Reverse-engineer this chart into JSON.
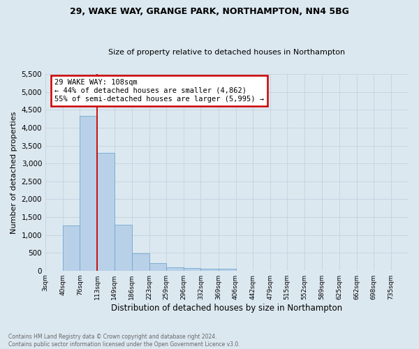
{
  "title1": "29, WAKE WAY, GRANGE PARK, NORTHAMPTON, NN4 5BG",
  "title2": "Size of property relative to detached houses in Northampton",
  "xlabel": "Distribution of detached houses by size in Northampton",
  "ylabel": "Number of detached properties",
  "footnote": "Contains HM Land Registry data © Crown copyright and database right 2024.\nContains public sector information licensed under the Open Government Licence v3.0.",
  "bin_edges": [
    3,
    40,
    76,
    113,
    149,
    186,
    223,
    259,
    296,
    332,
    369,
    406,
    442,
    479,
    515,
    552,
    589,
    625,
    662,
    698,
    735
  ],
  "bar_values": [
    0,
    1270,
    4330,
    3300,
    1280,
    480,
    200,
    100,
    70,
    50,
    60,
    0,
    0,
    0,
    0,
    0,
    0,
    0,
    0,
    0
  ],
  "bar_color": "#b8d0e8",
  "bar_edge_color": "#6fa8d0",
  "property_line_x": 113,
  "property_line_label": "29 WAKE WAY: 108sqm",
  "annotation_line1": "← 44% of detached houses are smaller (4,862)",
  "annotation_line2": "55% of semi-detached houses are larger (5,995) →",
  "annotation_box_color": "#ffffff",
  "annotation_box_edge": "#cc0000",
  "vline_color": "#cc0000",
  "ylim": [
    0,
    5500
  ],
  "yticks": [
    0,
    500,
    1000,
    1500,
    2000,
    2500,
    3000,
    3500,
    4000,
    4500,
    5000,
    5500
  ],
  "grid_color": "#c8d4e0",
  "bg_color": "#dce8f0",
  "footnote_color": "#666666"
}
